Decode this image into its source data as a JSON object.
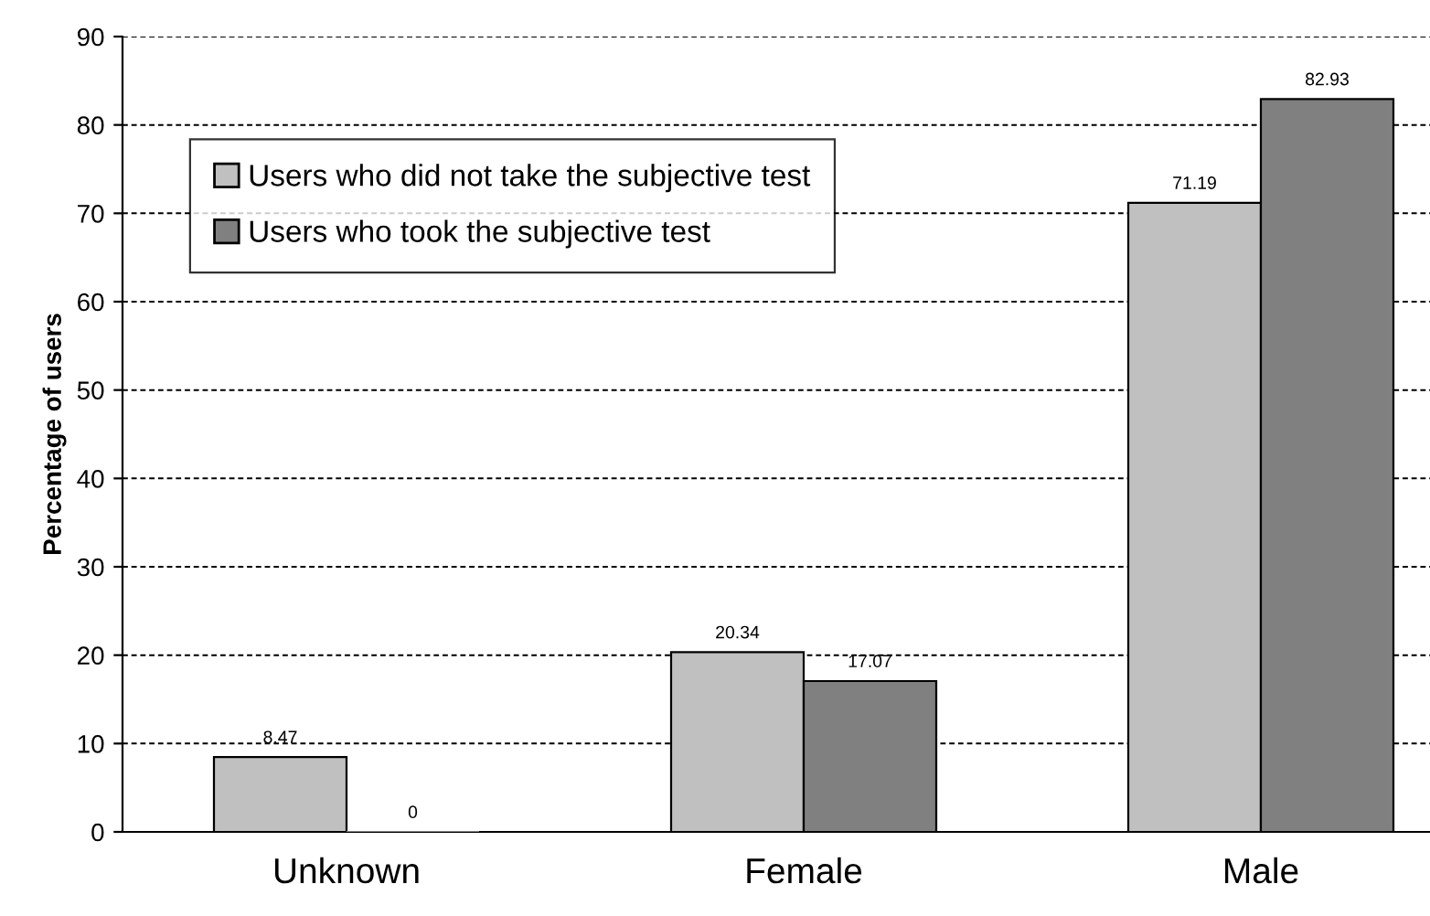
{
  "chart_data": {
    "type": "bar",
    "ylabel": "Percentage of users",
    "categories": [
      "Unknown",
      "Female",
      "Male"
    ],
    "series": [
      {
        "name": "Users who did not take the subjective test",
        "color": "#c0c0c0",
        "values": [
          8.47,
          20.34,
          71.19
        ]
      },
      {
        "name": "Users who took the subjective test",
        "color": "#808080",
        "values": [
          0,
          17.07,
          82.93
        ]
      }
    ],
    "ylim": [
      0,
      90
    ],
    "yticks": [
      0,
      10,
      20,
      30,
      40,
      50,
      60,
      70,
      80,
      90
    ],
    "grid": "y",
    "legend": "top left",
    "data_labels": true
  }
}
